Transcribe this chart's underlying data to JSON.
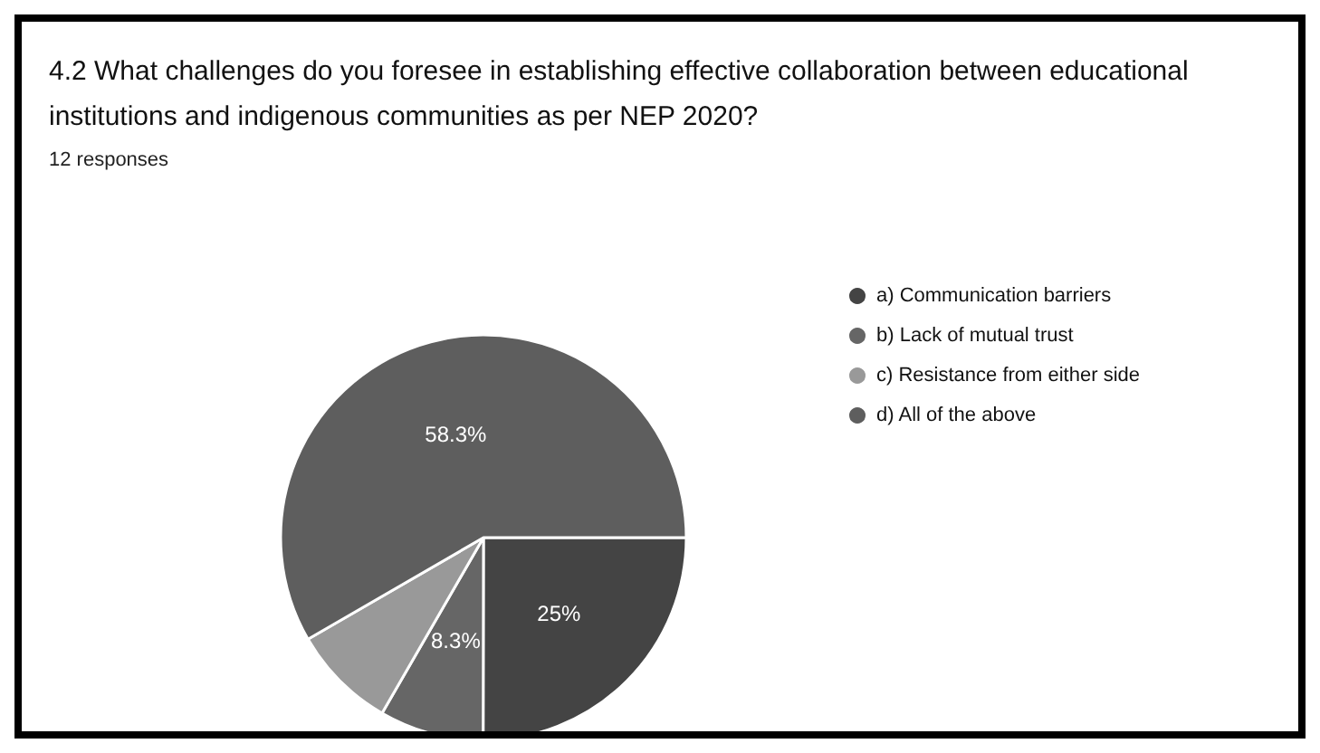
{
  "chart_data": {
    "type": "pie",
    "title": "4.2 What challenges do you foresee in establishing effective collaboration between educational institutions and indigenous communities as per NEP 2020?",
    "subtitle": "12 responses",
    "categories": [
      "a) Communication barriers",
      "b) Lack of mutual trust",
      "c) Resistance from either side",
      "d) All of the above"
    ],
    "values": [
      25,
      8.3,
      8.3,
      58.3
    ],
    "colors": [
      "#444444",
      "#666666",
      "#999999",
      "#5e5e5e"
    ],
    "value_labels": [
      "25%",
      "8.3%",
      null,
      "58.3%"
    ],
    "legend": "right"
  }
}
